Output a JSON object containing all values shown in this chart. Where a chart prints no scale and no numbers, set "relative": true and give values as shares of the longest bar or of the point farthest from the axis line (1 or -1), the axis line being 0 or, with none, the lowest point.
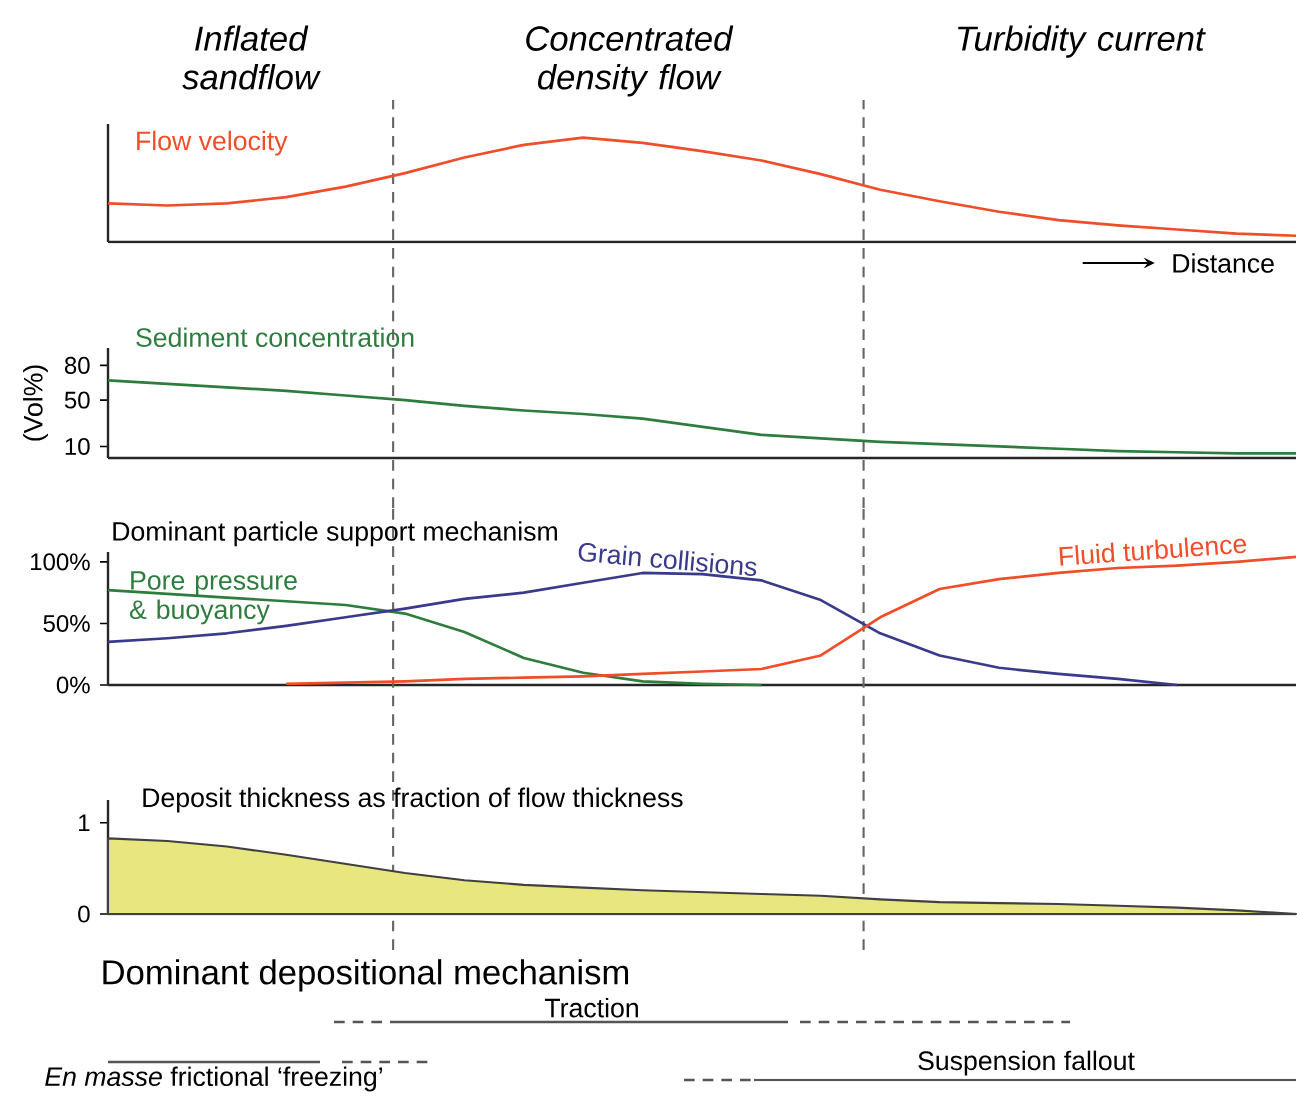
{
  "chart_data": [
    {
      "type": "line",
      "relative": true,
      "xlabel": "Distance",
      "tick_labels": false,
      "categories": [
        null,
        null,
        null,
        null,
        null,
        null,
        null,
        null,
        null,
        null,
        null,
        null,
        null,
        null,
        null,
        null,
        null,
        null,
        null,
        null,
        null
      ],
      "series": [
        {
          "name": "Flow velocity",
          "color": "#f04e2a",
          "values": [
            0.37,
            0.35,
            0.37,
            0.43,
            0.53,
            0.66,
            0.81,
            0.93,
            1.0,
            0.95,
            0.87,
            0.78,
            0.65,
            0.5,
            0.39,
            0.29,
            0.21,
            0.16,
            0.12,
            0.08,
            0.06
          ]
        }
      ],
      "annotations": [
        "Inflated sandflow",
        "Concentrated density flow",
        "Turbidity current"
      ]
    },
    {
      "type": "line",
      "ylim": [
        0,
        95
      ],
      "yticks": [
        10,
        50,
        80
      ],
      "ylabel": "(Vol%)",
      "tick_labels": "y",
      "categories": [
        null,
        null,
        null,
        null,
        null,
        null,
        null,
        null,
        null,
        null,
        null,
        null,
        null,
        null,
        null,
        null,
        null,
        null,
        null,
        null,
        null
      ],
      "series": [
        {
          "name": "Sediment concentration",
          "color": "#2e7d3e",
          "values": [
            67,
            64,
            61,
            58,
            54,
            50,
            45,
            41,
            38,
            34,
            27,
            20,
            17,
            14,
            12,
            10,
            8,
            6,
            5,
            4,
            4
          ]
        }
      ]
    },
    {
      "type": "line",
      "title": "Dominant particle support mechanism",
      "ylim": [
        0,
        108
      ],
      "tick_labels": "y",
      "yticks": [
        {
          "value": 0,
          "label": "0%"
        },
        {
          "value": 50,
          "label": "50%"
        },
        {
          "value": 100,
          "label": "100%"
        }
      ],
      "categories": [
        null,
        null,
        null,
        null,
        null,
        null,
        null,
        null,
        null,
        null,
        null,
        null,
        null,
        null,
        null,
        null,
        null,
        null,
        null,
        null,
        null
      ],
      "series": [
        {
          "name": "Pore pressure & buoyancy",
          "color": "#2e7d3e",
          "values": [
            77,
            74,
            71,
            68,
            65,
            58,
            43,
            22,
            10,
            3,
            1,
            0,
            null,
            null,
            null,
            null,
            null,
            null,
            null,
            null,
            null
          ]
        },
        {
          "name": "Grain collisions",
          "color": "#3a3a8c",
          "values": [
            35,
            38,
            42,
            48,
            55,
            62,
            70,
            75,
            83,
            91,
            90,
            85,
            69,
            42,
            24,
            14,
            9,
            5,
            0,
            null,
            null
          ]
        },
        {
          "name": "Fluid turbulence",
          "color": "#f04e2a",
          "values": [
            null,
            null,
            null,
            1,
            2,
            3,
            5,
            6,
            7,
            9,
            11,
            13,
            24,
            55,
            78,
            86,
            91,
            95,
            97,
            100,
            104
          ]
        }
      ]
    },
    {
      "type": "area",
      "title": "Deposit thickness as fraction of flow thickness",
      "ylim": [
        0,
        1.25
      ],
      "yticks": [
        0,
        1
      ],
      "tick_labels": "y",
      "categories": [
        null,
        null,
        null,
        null,
        null,
        null,
        null,
        null,
        null,
        null,
        null,
        null,
        null,
        null,
        null,
        null,
        null,
        null,
        null,
        null,
        null
      ],
      "values": [
        0.83,
        0.8,
        0.74,
        0.65,
        0.55,
        0.45,
        0.37,
        0.32,
        0.29,
        0.26,
        0.24,
        0.22,
        0.2,
        0.16,
        0.13,
        0.12,
        0.11,
        0.09,
        0.07,
        0.04,
        0
      ],
      "color": "#e8e67e"
    },
    {
      "type": "other",
      "title": "Dominant depositional mechanism",
      "annotations": [
        "Traction",
        "*En masse* frictional ‘freezing’",
        "Suspension fallout"
      ]
    }
  ]
}
